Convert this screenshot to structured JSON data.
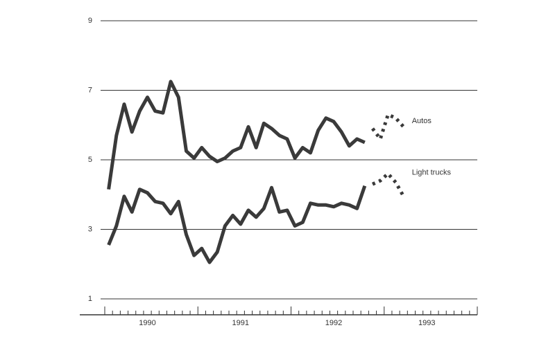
{
  "chart_data": {
    "type": "line",
    "categories": [
      null,
      null,
      null,
      null,
      null,
      "1990",
      null,
      null,
      null,
      null,
      null,
      null,
      null,
      null,
      null,
      null,
      null,
      "1991",
      null,
      null,
      null,
      null,
      null,
      null,
      null,
      null,
      null,
      null,
      null,
      "1992",
      null,
      null,
      null,
      null,
      null,
      null,
      null,
      null,
      null,
      null,
      null,
      "1993",
      null,
      null,
      null,
      null,
      null,
      null
    ],
    "series": [
      {
        "name": "Autos",
        "color": "#3a3a3a",
        "values": [
          4.15,
          5.7,
          6.6,
          5.8,
          6.4,
          6.8,
          6.4,
          6.35,
          7.25,
          6.8,
          5.25,
          5.05,
          5.35,
          5.1,
          4.95,
          5.05,
          5.25,
          5.35,
          5.95,
          5.35,
          6.05,
          5.9,
          5.7,
          5.6,
          5.05,
          5.35,
          5.2,
          5.85,
          6.2,
          6.1,
          5.8,
          5.4,
          5.6,
          5.5,
          null,
          null,
          null,
          null,
          null,
          null,
          null,
          null,
          null,
          null,
          null,
          null,
          null,
          null
        ],
        "projection": [
          null,
          null,
          null,
          null,
          null,
          null,
          null,
          null,
          null,
          null,
          null,
          null,
          null,
          null,
          null,
          null,
          null,
          null,
          null,
          null,
          null,
          null,
          null,
          null,
          null,
          null,
          null,
          null,
          null,
          null,
          null,
          null,
          null,
          null,
          5.9,
          5.6,
          6.3,
          6.2,
          5.95,
          null,
          null,
          null,
          null,
          null,
          null,
          null,
          null,
          null
        ]
      },
      {
        "name": "Light trucks",
        "color": "#3a3a3a",
        "values": [
          2.55,
          3.1,
          3.95,
          3.5,
          4.15,
          4.05,
          3.8,
          3.75,
          3.45,
          3.8,
          2.85,
          2.25,
          2.45,
          2.05,
          2.35,
          3.1,
          3.4,
          3.15,
          3.55,
          3.35,
          3.6,
          4.2,
          3.5,
          3.55,
          3.1,
          3.2,
          3.75,
          3.7,
          3.7,
          3.65,
          3.75,
          3.7,
          3.6,
          4.25,
          null,
          null,
          null,
          null,
          null,
          null,
          null,
          null,
          null,
          null,
          null,
          null,
          null,
          null
        ],
        "projection": [
          null,
          null,
          null,
          null,
          null,
          null,
          null,
          null,
          null,
          null,
          null,
          null,
          null,
          null,
          null,
          null,
          null,
          null,
          null,
          null,
          null,
          null,
          null,
          null,
          null,
          null,
          null,
          null,
          null,
          null,
          null,
          null,
          null,
          null,
          4.3,
          4.4,
          4.6,
          4.35,
          3.95,
          null,
          null,
          null,
          null,
          null,
          null,
          null,
          null,
          null
        ]
      }
    ],
    "ylim": [
      1,
      9
    ],
    "yticks": [
      1,
      3,
      5,
      7,
      9
    ],
    "grid": true
  }
}
